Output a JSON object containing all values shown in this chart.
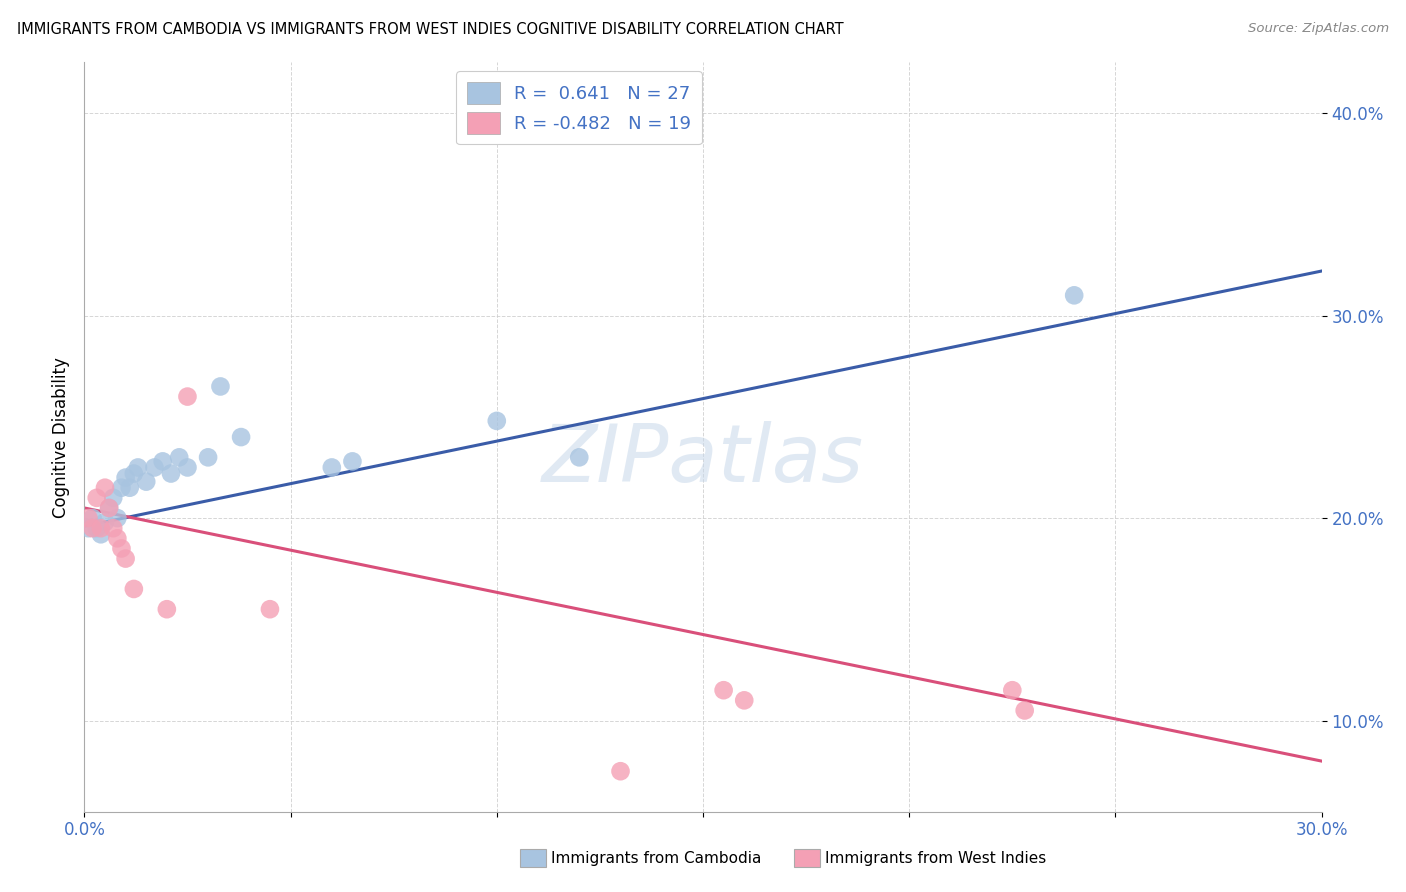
{
  "title": "IMMIGRANTS FROM CAMBODIA VS IMMIGRANTS FROM WEST INDIES COGNITIVE DISABILITY CORRELATION CHART",
  "source": "Source: ZipAtlas.com",
  "ylabel": "Cognitive Disability",
  "legend_blue_r": "0.641",
  "legend_blue_n": "27",
  "legend_pink_r": "-0.482",
  "legend_pink_n": "19",
  "blue_color": "#a8c4e0",
  "pink_color": "#f4a0b5",
  "blue_line_color": "#3a5ca8",
  "pink_line_color": "#d94f7a",
  "watermark_text": "ZIPatlas",
  "blue_scatter_x": [
    0.001,
    0.002,
    0.003,
    0.004,
    0.005,
    0.006,
    0.007,
    0.008,
    0.009,
    0.01,
    0.011,
    0.012,
    0.013,
    0.015,
    0.017,
    0.019,
    0.021,
    0.023,
    0.025,
    0.03,
    0.033,
    0.038,
    0.06,
    0.065,
    0.1,
    0.12,
    0.24
  ],
  "blue_scatter_y": [
    0.195,
    0.2,
    0.195,
    0.192,
    0.198,
    0.205,
    0.21,
    0.2,
    0.215,
    0.22,
    0.215,
    0.222,
    0.225,
    0.218,
    0.225,
    0.228,
    0.222,
    0.23,
    0.225,
    0.23,
    0.265,
    0.24,
    0.225,
    0.228,
    0.248,
    0.23,
    0.31
  ],
  "pink_scatter_x": [
    0.001,
    0.002,
    0.003,
    0.004,
    0.005,
    0.006,
    0.007,
    0.008,
    0.009,
    0.01,
    0.012,
    0.02,
    0.025,
    0.045,
    0.155,
    0.16,
    0.225,
    0.228,
    0.13
  ],
  "pink_scatter_y": [
    0.2,
    0.195,
    0.21,
    0.195,
    0.215,
    0.205,
    0.195,
    0.19,
    0.185,
    0.18,
    0.165,
    0.155,
    0.26,
    0.155,
    0.115,
    0.11,
    0.115,
    0.105,
    0.075
  ],
  "blue_line_x0": 0.0,
  "blue_line_y0": 0.196,
  "blue_line_x1": 0.3,
  "blue_line_y1": 0.322,
  "pink_line_x0": 0.0,
  "pink_line_y0": 0.205,
  "pink_line_x1": 0.3,
  "pink_line_y1": 0.08,
  "xlim": [
    0.0,
    0.3
  ],
  "ylim": [
    0.055,
    0.425
  ],
  "yticks": [
    0.1,
    0.2,
    0.3,
    0.4
  ],
  "ytick_labels": [
    "10.0%",
    "20.0%",
    "30.0%",
    "40.0%"
  ],
  "xtick_vals": [
    0.0,
    0.05,
    0.1,
    0.15,
    0.2,
    0.25,
    0.3
  ],
  "xtick_labels": [
    "0.0%",
    "",
    "",
    "",
    "",
    "",
    "30.0%"
  ],
  "grid_color": "#cccccc",
  "background_color": "#ffffff",
  "bottom_legend_left_label": "Immigrants from Cambodia",
  "bottom_legend_right_label": "Immigrants from West Indies"
}
